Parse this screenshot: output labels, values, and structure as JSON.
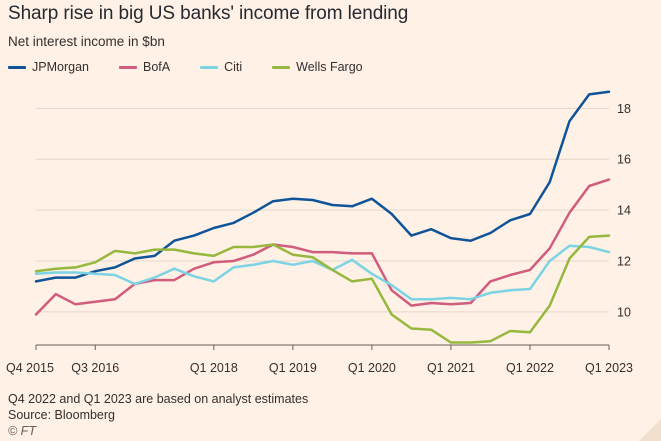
{
  "title": "Sharp rise in big US banks' income from lending",
  "subtitle": "Net interest income in $bn",
  "footnote": "Q4 2022 and Q1 2023 are based on analyst estimates",
  "source": "Source: Bloomberg",
  "credit": "© FT",
  "chart_data": {
    "type": "line",
    "x": [
      "Q4 2015",
      "Q1 2016",
      "Q2 2016",
      "Q3 2016",
      "Q4 2016",
      "Q1 2017",
      "Q2 2017",
      "Q3 2017",
      "Q4 2017",
      "Q1 2018",
      "Q2 2018",
      "Q3 2018",
      "Q4 2018",
      "Q1 2019",
      "Q2 2019",
      "Q3 2019",
      "Q4 2019",
      "Q1 2020",
      "Q2 2020",
      "Q3 2020",
      "Q4 2020",
      "Q1 2021",
      "Q2 2021",
      "Q3 2021",
      "Q4 2021",
      "Q1 2022",
      "Q2 2022",
      "Q3 2022",
      "Q4 2022",
      "Q1 2023"
    ],
    "x_tick_labels": [
      {
        "index": 0,
        "label": "Q4 2015"
      },
      {
        "index": 3,
        "label": "Q3 2016"
      },
      {
        "index": 9,
        "label": "Q1 2018"
      },
      {
        "index": 13,
        "label": "Q1 2019"
      },
      {
        "index": 17,
        "label": "Q1 2020"
      },
      {
        "index": 21,
        "label": "Q1 2021"
      },
      {
        "index": 25,
        "label": "Q1 2022"
      },
      {
        "index": 29,
        "label": "Q1 2023"
      }
    ],
    "ylim": [
      8.7,
      18.8
    ],
    "yticks": [
      10,
      12,
      14,
      16,
      18
    ],
    "grid": true,
    "legend_position": "top-left",
    "series": [
      {
        "name": "JPMorgan",
        "color": "#0F5499",
        "values": [
          11.2,
          11.35,
          11.35,
          11.6,
          11.75,
          12.1,
          12.2,
          12.8,
          13.0,
          13.3,
          13.5,
          13.9,
          14.35,
          14.45,
          14.4,
          14.2,
          14.15,
          14.45,
          13.85,
          13.0,
          13.25,
          12.9,
          12.8,
          13.1,
          13.6,
          13.85,
          15.1,
          17.5,
          18.55,
          18.65
        ]
      },
      {
        "name": "BofA",
        "color": "#D05C7E",
        "values": [
          9.9,
          10.7,
          10.3,
          10.4,
          10.5,
          11.1,
          11.25,
          11.25,
          11.7,
          11.95,
          12.0,
          12.25,
          12.65,
          12.55,
          12.35,
          12.35,
          12.3,
          12.3,
          10.85,
          10.25,
          10.35,
          10.3,
          10.35,
          11.2,
          11.45,
          11.65,
          12.5,
          13.9,
          14.95,
          15.2
        ]
      },
      {
        "name": "Citi",
        "color": "#7CD3E3",
        "values": [
          11.5,
          11.55,
          11.55,
          11.5,
          11.45,
          11.1,
          11.35,
          11.7,
          11.4,
          11.2,
          11.75,
          11.85,
          12.0,
          11.85,
          12.0,
          11.65,
          12.05,
          11.5,
          11.05,
          10.5,
          10.5,
          10.55,
          10.5,
          10.75,
          10.85,
          10.9,
          12.0,
          12.6,
          12.55,
          12.35
        ]
      },
      {
        "name": "Wells Fargo",
        "color": "#96B83E",
        "values": [
          11.6,
          11.7,
          11.75,
          11.95,
          12.4,
          12.3,
          12.45,
          12.45,
          12.3,
          12.2,
          12.55,
          12.55,
          12.65,
          12.25,
          12.15,
          11.65,
          11.2,
          11.3,
          9.9,
          9.35,
          9.3,
          8.8,
          8.8,
          8.85,
          9.25,
          9.2,
          10.25,
          12.1,
          12.95,
          13.0
        ]
      }
    ]
  }
}
